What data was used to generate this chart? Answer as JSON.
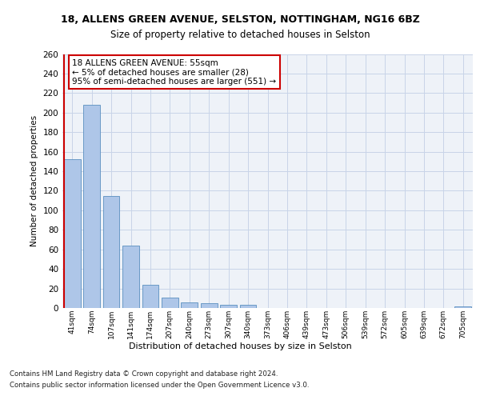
{
  "title1": "18, ALLENS GREEN AVENUE, SELSTON, NOTTINGHAM, NG16 6BZ",
  "title2": "Size of property relative to detached houses in Selston",
  "xlabel": "Distribution of detached houses by size in Selston",
  "ylabel": "Number of detached properties",
  "categories": [
    "41sqm",
    "74sqm",
    "107sqm",
    "141sqm",
    "174sqm",
    "207sqm",
    "240sqm",
    "273sqm",
    "307sqm",
    "340sqm",
    "373sqm",
    "406sqm",
    "439sqm",
    "473sqm",
    "506sqm",
    "539sqm",
    "572sqm",
    "605sqm",
    "639sqm",
    "672sqm",
    "705sqm"
  ],
  "values": [
    152,
    208,
    115,
    64,
    24,
    11,
    6,
    5,
    3,
    3,
    0,
    0,
    0,
    0,
    0,
    0,
    0,
    0,
    0,
    0,
    2
  ],
  "bar_color": "#aec6e8",
  "bar_edge_color": "#5a8fc0",
  "annotation_line1": "18 ALLENS GREEN AVENUE: 55sqm",
  "annotation_line2": "← 5% of detached houses are smaller (28)",
  "annotation_line3": "95% of semi-detached houses are larger (551) →",
  "annotation_box_color": "#ffffff",
  "annotation_box_edge_color": "#cc0000",
  "vline_color": "#cc0000",
  "ylim": [
    0,
    260
  ],
  "yticks": [
    0,
    20,
    40,
    60,
    80,
    100,
    120,
    140,
    160,
    180,
    200,
    220,
    240,
    260
  ],
  "grid_color": "#c8d4e8",
  "background_color": "#eef2f8",
  "footer_line1": "Contains HM Land Registry data © Crown copyright and database right 2024.",
  "footer_line2": "Contains public sector information licensed under the Open Government Licence v3.0."
}
